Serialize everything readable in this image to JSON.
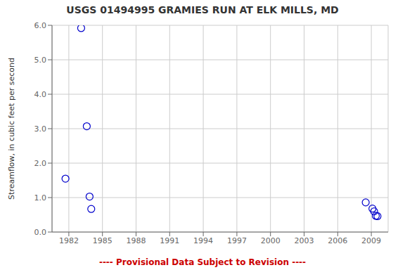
{
  "chart_data": {
    "type": "scatter",
    "title": "USGS 01494995 GRAMIES RUN AT ELK MILLS, MD",
    "ylabel": "Streamflow, in cubic feet per second",
    "x": [
      1981.7,
      1983.1,
      1983.6,
      1983.85,
      1984.0,
      2008.5,
      2009.1,
      2009.25,
      2009.4,
      2009.55
    ],
    "values": [
      1.55,
      5.92,
      3.07,
      1.03,
      0.67,
      0.86,
      0.68,
      0.6,
      0.47,
      0.46
    ],
    "color": "#0000CC",
    "marker": "circle",
    "xlim": [
      1980.5,
      2010.5
    ],
    "ylim": [
      0.0,
      6.0
    ],
    "xticks": [
      1982,
      1985,
      1988,
      1991,
      1994,
      1997,
      2000,
      2003,
      2006,
      2009
    ],
    "yticks": [
      {
        "value": 0.0,
        "label": "0.0"
      },
      {
        "value": 1.0,
        "label": "1.0"
      },
      {
        "value": 2.0,
        "label": "2.0"
      },
      {
        "value": 3.0,
        "label": "3.0"
      },
      {
        "value": 4.0,
        "label": "4.0"
      },
      {
        "value": 5.0,
        "label": "5.0"
      },
      {
        "value": 6.0,
        "label": "6.0"
      }
    ],
    "grid": true,
    "annotations": [
      {
        "text": "---- Provisional Data Subject to Revision ----",
        "color": "#cc0000"
      }
    ]
  }
}
